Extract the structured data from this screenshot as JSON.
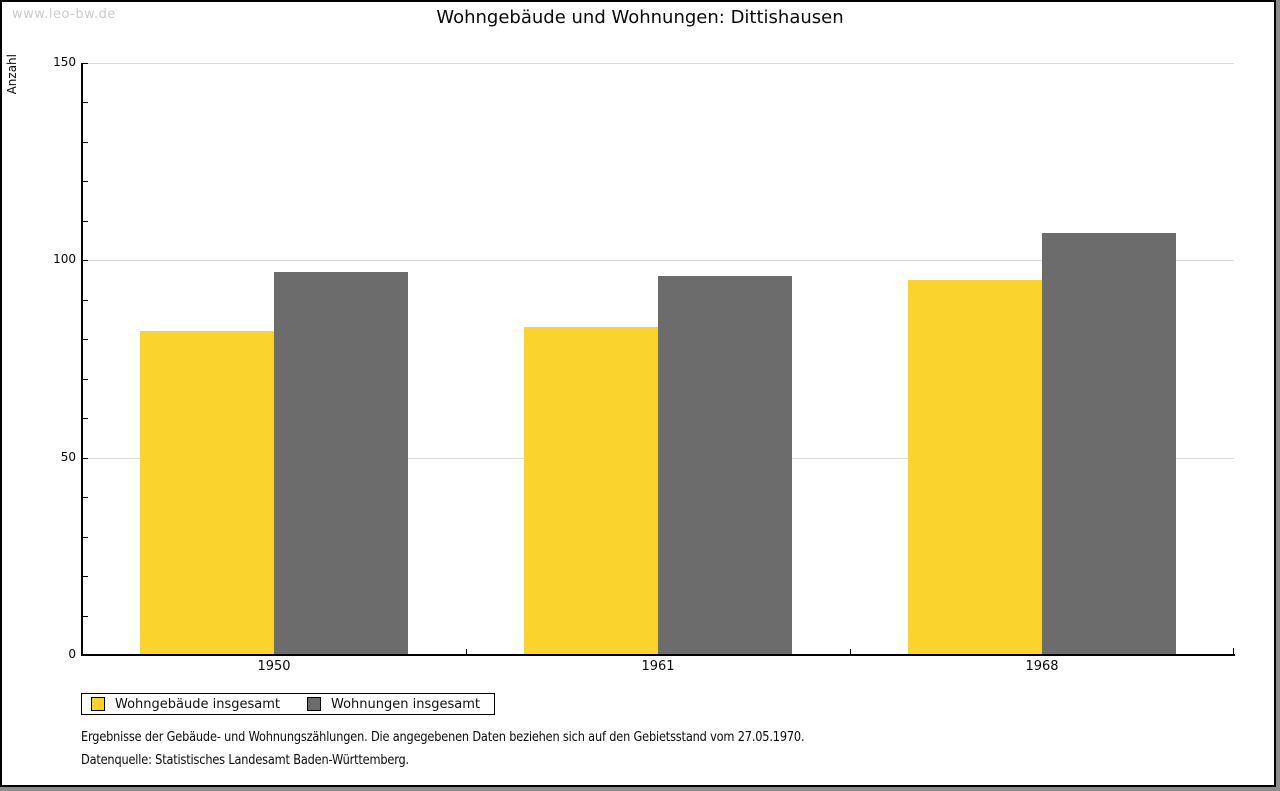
{
  "page": {
    "watermark": "www.leo-bw.de"
  },
  "chart_data": {
    "type": "bar",
    "title": "Wohngebäude und Wohnungen: Dittishausen",
    "xlabel": "",
    "ylabel": "Anzahl",
    "categories": [
      "1950",
      "1961",
      "1968"
    ],
    "series": [
      {
        "name": "Wohngebäude insgesamt",
        "color": "#FBD32D",
        "values": [
          82,
          83,
          95
        ]
      },
      {
        "name": "Wohnungen insgesamt",
        "color": "#6C6C6C",
        "values": [
          97,
          96,
          107
        ]
      }
    ],
    "ylim": [
      0,
      150
    ],
    "yticks": [
      0,
      50,
      100,
      150
    ],
    "minor_tick_step": 10,
    "grid": true,
    "legend_position": "bottom-left"
  },
  "footer": {
    "line1": "Ergebnisse der Gebäude- und Wohnungszählungen. Die angegebenen Daten beziehen sich auf den Gebietsstand vom 27.05.1970.",
    "line2": "Datenquelle: Statistisches Landesamt Baden-Württemberg."
  },
  "colors": {
    "grid": "#DCDCDC",
    "axis": "#000000",
    "watermark": "#CCCCCC"
  }
}
